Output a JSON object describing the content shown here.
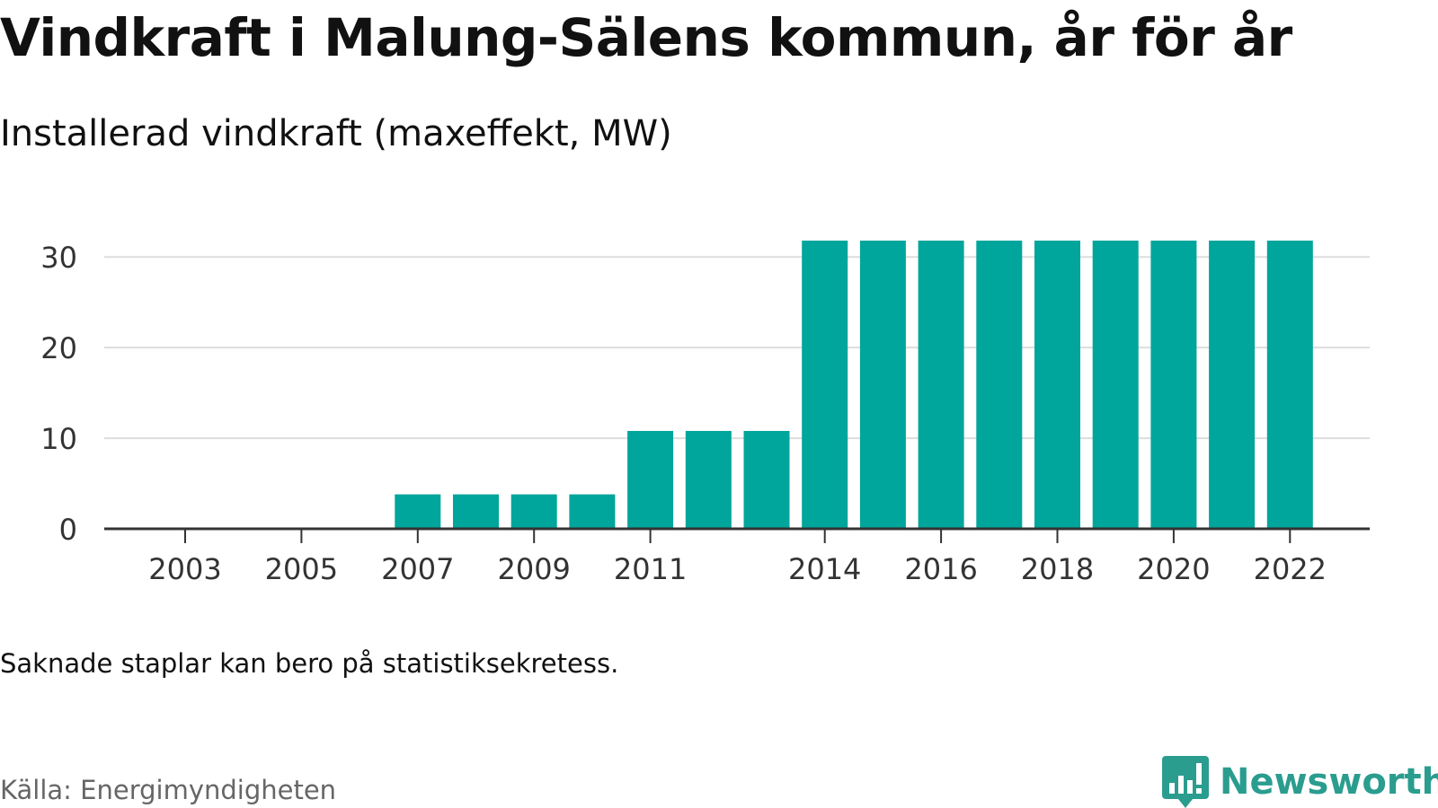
{
  "header": {
    "title": "Vindkraft i Malung-Sälens kommun, år för år",
    "subtitle": "Installerad vindkraft (maxeffekt, MW)"
  },
  "footer": {
    "note": "Saknade staplar kan bero på statistiksekretess.",
    "source": "Källa: Energimyndigheten",
    "brand": "Newsworthy",
    "brand_icon": "newsworthy-logo-icon"
  },
  "colors": {
    "bar": "#00a59b",
    "grid": "#dddddd",
    "axis": "#333333",
    "brand": "#2a9d8f"
  },
  "chart_data": {
    "type": "bar",
    "title": "Vindkraft i Malung-Sälens kommun, år för år",
    "subtitle": "Installerad vindkraft (maxeffekt, MW)",
    "xlabel": "",
    "ylabel": "",
    "categories": [
      "2003",
      "2004",
      "2005",
      "2006",
      "2007",
      "2008",
      "2009",
      "2010",
      "2011",
      "2012",
      "2013",
      "2014",
      "2015",
      "2016",
      "2017",
      "2018",
      "2019",
      "2020",
      "2021",
      "2022"
    ],
    "x_tick_labels": [
      "2003",
      "2005",
      "2007",
      "2009",
      "2011",
      "2014",
      "2016",
      "2018",
      "2020",
      "2022"
    ],
    "series": [
      {
        "values": [
          0,
          0,
          0,
          0,
          3.8,
          3.8,
          3.8,
          3.8,
          10.8,
          10.8,
          10.8,
          31.8,
          31.8,
          31.8,
          31.8,
          31.8,
          31.8,
          31.8,
          31.8,
          31.8
        ]
      }
    ],
    "ylim": [
      0,
      32
    ],
    "y_ticks": [
      0,
      10,
      20,
      30
    ],
    "grid": true,
    "legend": "none"
  }
}
